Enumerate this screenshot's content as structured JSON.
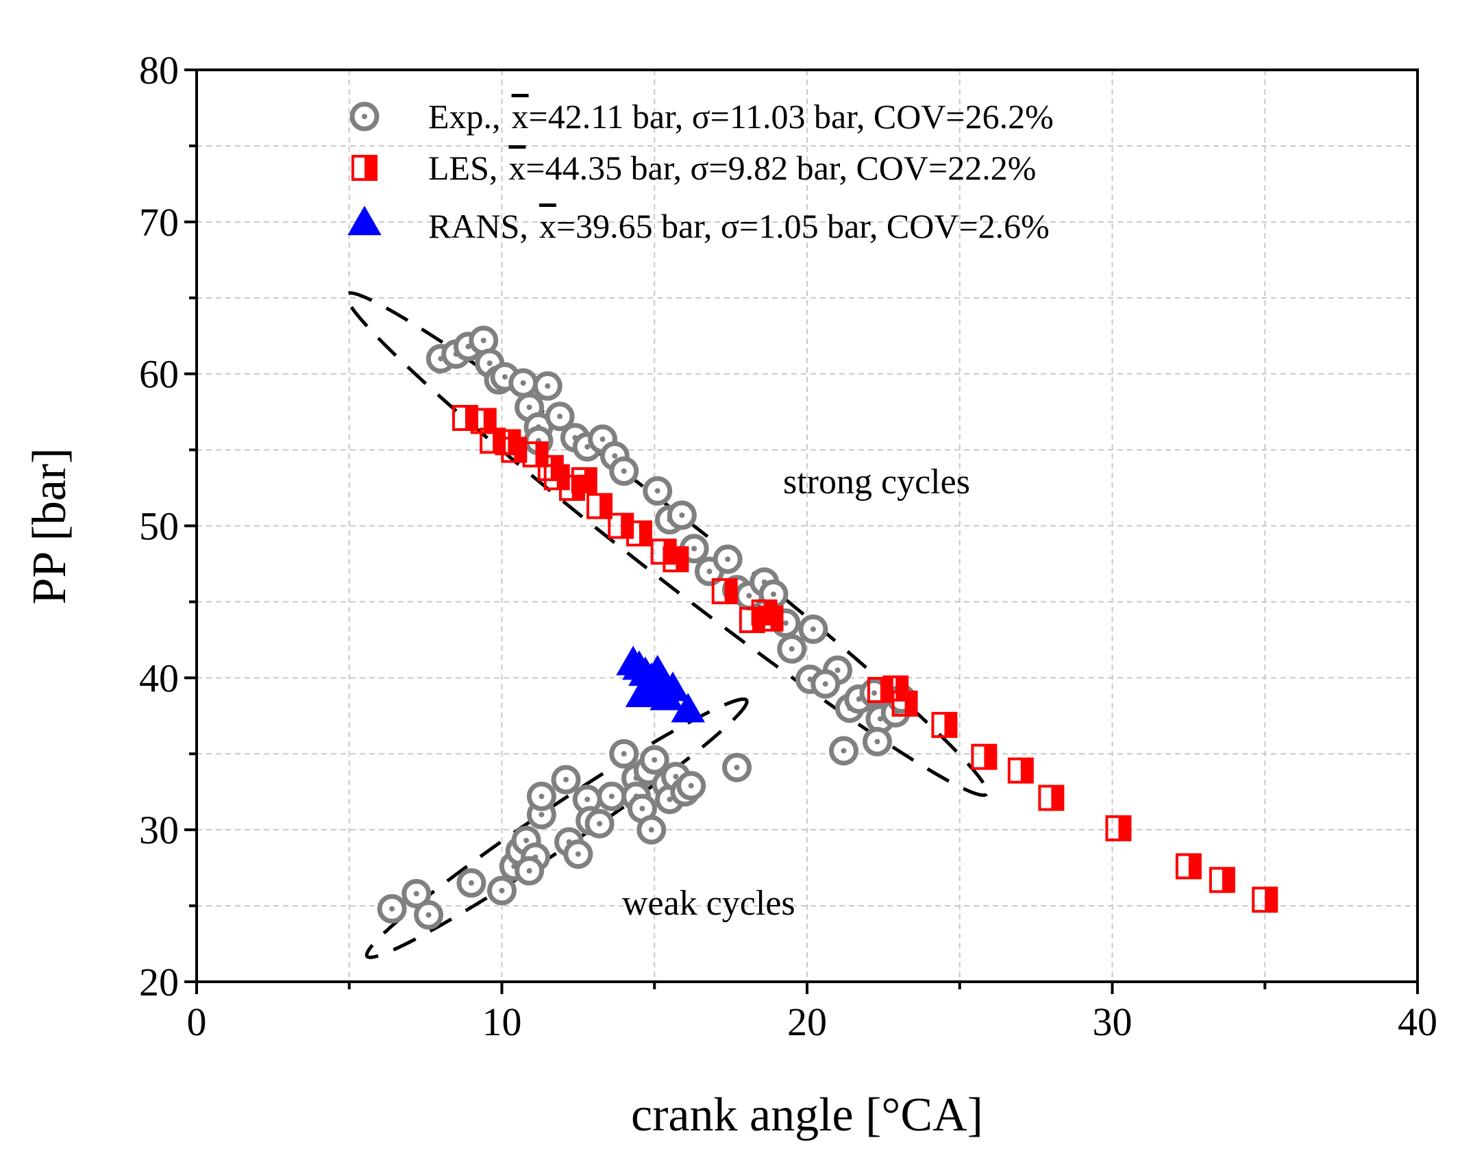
{
  "chart_data": {
    "type": "scatter",
    "xlabel": "crank angle [°CA]",
    "ylabel": "PP [bar]",
    "xlim": [
      0,
      40
    ],
    "ylim": [
      20,
      80
    ],
    "xticks": [
      "0",
      "10",
      "20",
      "30",
      "40"
    ],
    "yticks": [
      "20",
      "30",
      "40",
      "50",
      "60",
      "70",
      "80"
    ],
    "grid": true,
    "legend_position": "top",
    "colors": {
      "exp": "#808080",
      "les": "#ff0000",
      "rans": "#0000ff"
    },
    "series": [
      {
        "name": "Exp.",
        "label_prefix": "Exp.,",
        "mean_symbol": "x",
        "label_stats": "=42.11 bar, σ=11.03 bar, COV=26.2%",
        "marker": "dotted-circle",
        "points": [
          [
            8.0,
            61.0
          ],
          [
            8.5,
            61.3
          ],
          [
            8.9,
            61.8
          ],
          [
            9.4,
            62.2
          ],
          [
            9.6,
            60.7
          ],
          [
            9.9,
            59.6
          ],
          [
            10.1,
            59.8
          ],
          [
            10.7,
            59.4
          ],
          [
            10.9,
            57.8
          ],
          [
            11.5,
            59.2
          ],
          [
            11.2,
            56.5
          ],
          [
            11.9,
            57.2
          ],
          [
            11.2,
            55.6
          ],
          [
            12.4,
            55.8
          ],
          [
            12.8,
            55.2
          ],
          [
            13.3,
            55.7
          ],
          [
            13.7,
            54.6
          ],
          [
            14.0,
            53.6
          ],
          [
            15.1,
            52.3
          ],
          [
            15.5,
            50.4
          ],
          [
            15.9,
            50.7
          ],
          [
            16.3,
            48.5
          ],
          [
            16.8,
            47.0
          ],
          [
            17.4,
            47.8
          ],
          [
            17.7,
            45.8
          ],
          [
            18.1,
            45.4
          ],
          [
            18.6,
            46.3
          ],
          [
            18.9,
            45.5
          ],
          [
            19.3,
            43.6
          ],
          [
            19.5,
            41.9
          ],
          [
            20.2,
            43.2
          ],
          [
            20.1,
            39.9
          ],
          [
            21.0,
            40.5
          ],
          [
            20.6,
            39.6
          ],
          [
            21.4,
            38.0
          ],
          [
            21.7,
            38.6
          ],
          [
            22.2,
            39.0
          ],
          [
            22.4,
            37.3
          ],
          [
            22.9,
            37.7
          ],
          [
            23.1,
            38.6
          ],
          [
            21.2,
            35.2
          ],
          [
            22.3,
            35.8
          ],
          [
            6.4,
            24.8
          ],
          [
            7.2,
            25.8
          ],
          [
            7.6,
            24.4
          ],
          [
            9.0,
            26.5
          ],
          [
            10.0,
            26.0
          ],
          [
            10.4,
            27.6
          ],
          [
            10.6,
            28.6
          ],
          [
            10.8,
            29.3
          ],
          [
            11.1,
            28.2
          ],
          [
            10.9,
            27.3
          ],
          [
            11.3,
            31.0
          ],
          [
            11.3,
            32.2
          ],
          [
            12.1,
            33.3
          ],
          [
            12.2,
            29.2
          ],
          [
            12.5,
            28.4
          ],
          [
            12.8,
            32.0
          ],
          [
            12.9,
            30.6
          ],
          [
            13.2,
            30.4
          ],
          [
            13.6,
            32.2
          ],
          [
            14.0,
            35.0
          ],
          [
            14.4,
            33.4
          ],
          [
            14.4,
            32.2
          ],
          [
            14.6,
            31.4
          ],
          [
            14.8,
            33.9
          ],
          [
            15.0,
            34.6
          ],
          [
            15.4,
            33.0
          ],
          [
            15.5,
            32.0
          ],
          [
            15.7,
            33.5
          ],
          [
            16.0,
            32.5
          ],
          [
            16.2,
            32.9
          ],
          [
            14.9,
            30.0
          ],
          [
            17.7,
            34.1
          ]
        ]
      },
      {
        "name": "LES",
        "label_prefix": "LES,",
        "mean_symbol": "x",
        "label_stats": "=44.35 bar, σ=9.82 bar, COV=22.2%",
        "marker": "half-filled-square",
        "points": [
          [
            8.8,
            57.1
          ],
          [
            9.4,
            56.9
          ],
          [
            9.7,
            55.6
          ],
          [
            10.2,
            55.5
          ],
          [
            10.4,
            55.0
          ],
          [
            11.1,
            54.7
          ],
          [
            11.6,
            53.8
          ],
          [
            11.8,
            53.2
          ],
          [
            12.3,
            52.5
          ],
          [
            12.7,
            53.0
          ],
          [
            13.2,
            51.3
          ],
          [
            13.9,
            50.0
          ],
          [
            14.5,
            49.5
          ],
          [
            15.3,
            48.3
          ],
          [
            15.7,
            47.8
          ],
          [
            17.3,
            45.7
          ],
          [
            18.2,
            43.8
          ],
          [
            18.6,
            44.3
          ],
          [
            18.8,
            43.9
          ],
          [
            22.4,
            39.2
          ],
          [
            22.9,
            39.3
          ],
          [
            23.2,
            38.3
          ],
          [
            24.5,
            36.9
          ],
          [
            25.8,
            34.8
          ],
          [
            27.0,
            33.9
          ],
          [
            28.0,
            32.1
          ],
          [
            30.2,
            30.1
          ],
          [
            32.5,
            27.6
          ],
          [
            33.6,
            26.7
          ],
          [
            35.0,
            25.4
          ]
        ]
      },
      {
        "name": "RANS",
        "label_prefix": "RANS,",
        "mean_symbol": "x",
        "label_stats": "=39.65 bar, σ=1.05 bar, COV=2.6%",
        "marker": "filled-triangle",
        "points": [
          [
            14.3,
            40.9
          ],
          [
            14.5,
            40.6
          ],
          [
            14.7,
            40.2
          ],
          [
            14.9,
            39.8
          ],
          [
            15.1,
            40.3
          ],
          [
            15.3,
            39.5
          ],
          [
            15.6,
            39.2
          ],
          [
            14.8,
            39.0
          ],
          [
            15.4,
            38.6
          ],
          [
            14.6,
            38.8
          ],
          [
            16.1,
            37.8
          ]
        ]
      }
    ],
    "annotations": [
      "strong cycles",
      "weak cycles"
    ]
  }
}
